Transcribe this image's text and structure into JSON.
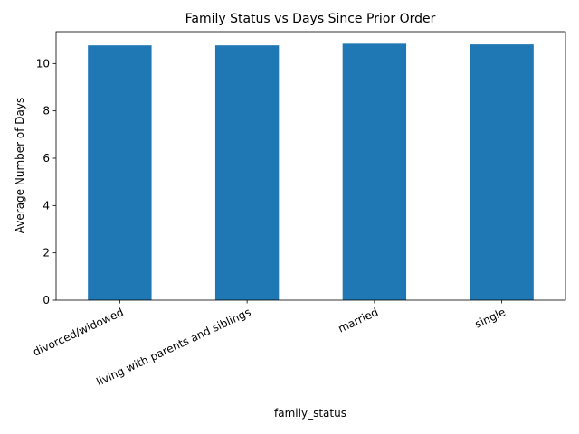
{
  "chart_data": {
    "type": "bar",
    "title": "Family Status vs Days Since Prior Order",
    "xlabel": "family_status",
    "ylabel": "Average Number of Days",
    "categories": [
      "divorced/widowed",
      "living with parents and siblings",
      "married",
      "single"
    ],
    "values": [
      10.77,
      10.77,
      10.84,
      10.81
    ],
    "ylim": [
      0,
      11.35
    ],
    "yticks": [
      "0",
      "2",
      "4",
      "6",
      "8",
      "10"
    ],
    "bar_color": "#1f77b4",
    "xtick_rotation": "25 degrees",
    "grid": false,
    "legend": "none"
  }
}
